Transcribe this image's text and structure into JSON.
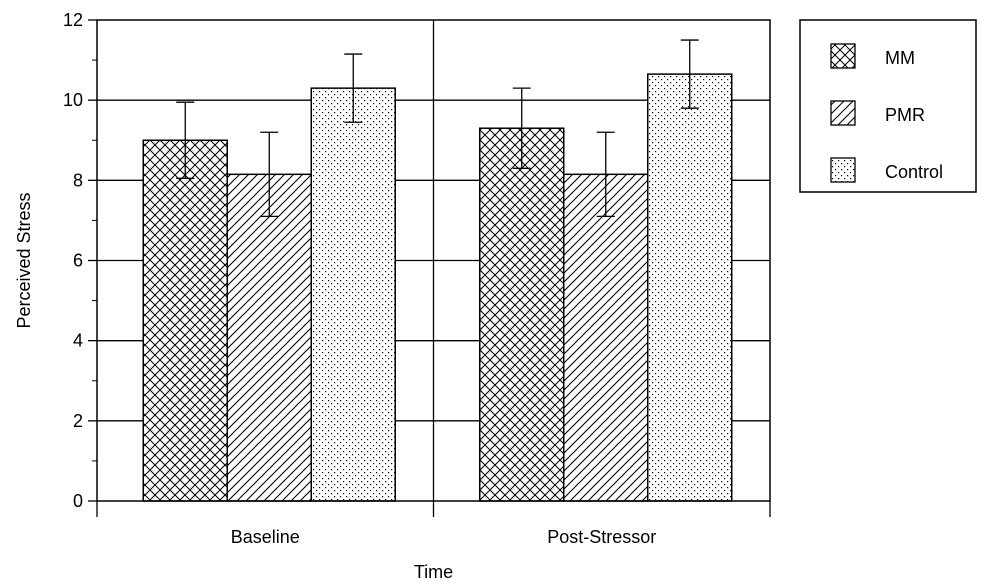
{
  "chart_data": {
    "type": "bar",
    "title": "",
    "xlabel": "Time",
    "ylabel": "Perceived Stress",
    "ylim": [
      0,
      12
    ],
    "yticks": [
      0,
      2,
      4,
      6,
      8,
      10,
      12
    ],
    "grid": true,
    "legend_position": "right",
    "categories": [
      "Baseline",
      "Post-Stressor"
    ],
    "series": [
      {
        "name": "MM",
        "pattern": "crosshatch",
        "values": [
          9.0,
          9.3
        ],
        "error": [
          0.95,
          1.0
        ]
      },
      {
        "name": "PMR",
        "pattern": "diagonal",
        "values": [
          8.15,
          8.15
        ],
        "error": [
          1.05,
          1.05
        ]
      },
      {
        "name": "Control",
        "pattern": "dots",
        "values": [
          10.3,
          10.65
        ],
        "error": [
          0.85,
          0.85
        ]
      }
    ]
  },
  "colors": {
    "axis": "#000000",
    "bar_fill": "#ffffff",
    "pattern": "#000000"
  }
}
